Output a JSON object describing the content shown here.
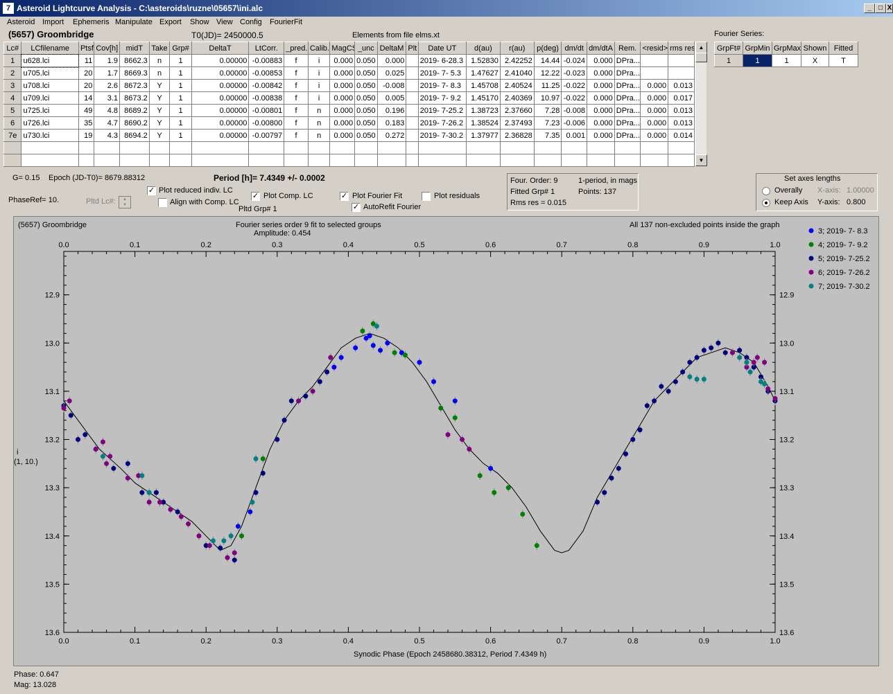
{
  "window": {
    "title": "Asteroid Lightcurve Analysis - C:\\asteroids\\ruzne\\05657\\ini.alc",
    "minimize": "_",
    "maximize": "□",
    "close": "X",
    "icon": "app-icon"
  },
  "menu": [
    "Asteroid",
    "Import",
    "Ephemeris",
    "Manipulate",
    "Export",
    "Show",
    "View",
    "Config",
    "FourierFit"
  ],
  "header": {
    "asteroid": "(5657) Groombridge",
    "t0": "T0(JD)= 2450000.5",
    "elements": "Elements from file elms.xt",
    "fourier_label": "Fourier Series:"
  },
  "lc_table": {
    "headers": [
      "Lc#",
      "LCfilename",
      "Ptsf",
      "Cov[h]",
      "midT",
      "Take",
      "Grp#",
      "DeltaT",
      "LtCorr.",
      "_pred.",
      "Calib.",
      "MagCS",
      "_unc",
      "DeltaM",
      "Plt",
      "Date UT",
      "d(au)",
      "r(au)",
      "p(deg)",
      "dm/dt",
      "dm/dtA",
      "Rem.",
      "<resid>",
      "rms res"
    ],
    "rows": [
      [
        "1",
        "u628.lci",
        "11",
        "1.9",
        "8662.3",
        "n",
        "1",
        "0.00000",
        "-0.00883",
        "f",
        "i",
        "0.000",
        "0.050",
        "0.000",
        "",
        "2019- 6-28.3",
        "1.52830",
        "2.42252",
        "14.44",
        "-0.024",
        "0.000",
        "DPra...",
        "",
        ""
      ],
      [
        "2",
        "u705.lci",
        "20",
        "1.7",
        "8669.3",
        "n",
        "1",
        "0.00000",
        "-0.00853",
        "f",
        "i",
        "0.000",
        "0.050",
        "0.025",
        "",
        "2019- 7- 5.3",
        "1.47627",
        "2.41040",
        "12.22",
        "-0.023",
        "0.000",
        "DPra...",
        "",
        ""
      ],
      [
        "3",
        "u708.lci",
        "20",
        "2.6",
        "8672.3",
        "Y",
        "1",
        "0.00000",
        "-0.00842",
        "f",
        "i",
        "0.000",
        "0.050",
        "-0.008",
        "",
        "2019- 7- 8.3",
        "1.45708",
        "2.40524",
        "11.25",
        "-0.022",
        "0.000",
        "DPra...",
        "0.000",
        "0.013"
      ],
      [
        "4",
        "u709.lci",
        "14",
        "3.1",
        "8673.2",
        "Y",
        "1",
        "0.00000",
        "-0.00838",
        "f",
        "i",
        "0.000",
        "0.050",
        "0.005",
        "",
        "2019- 7- 9.2",
        "1.45170",
        "2.40369",
        "10.97",
        "-0.022",
        "0.000",
        "DPra...",
        "0.000",
        "0.017"
      ],
      [
        "5",
        "u725.lci",
        "49",
        "4.8",
        "8689.2",
        "Y",
        "1",
        "0.00000",
        "-0.00801",
        "f",
        "n",
        "0.000",
        "0.050",
        "0.196",
        "",
        "2019- 7-25.2",
        "1.38723",
        "2.37660",
        "7.28",
        "-0.008",
        "0.000",
        "DPra...",
        "0.000",
        "0.013"
      ],
      [
        "6",
        "u726.lci",
        "35",
        "4.7",
        "8690.2",
        "Y",
        "1",
        "0.00000",
        "-0.00800",
        "f",
        "n",
        "0.000",
        "0.050",
        "0.183",
        "",
        "2019- 7-26.2",
        "1.38524",
        "2.37493",
        "7.23",
        "-0.006",
        "0.000",
        "DPra...",
        "0.000",
        "0.013"
      ],
      [
        "7e",
        "u730.lci",
        "19",
        "4.3",
        "8694.2",
        "Y",
        "1",
        "0.00000",
        "-0.00797",
        "f",
        "n",
        "0.000",
        "0.050",
        "0.272",
        "",
        "2019- 7-30.2",
        "1.37977",
        "2.36828",
        "7.35",
        "0.001",
        "0.000",
        "DPra...",
        "0.000",
        "0.014"
      ]
    ]
  },
  "fourier_table": {
    "headers": [
      "GrpFt#",
      "GrpMin",
      "GrpMax",
      "Shown",
      "Fitted"
    ],
    "row": [
      "1",
      "1",
      "1",
      "X",
      "T"
    ]
  },
  "controls": {
    "g": "G= 0.15",
    "epoch": "Epoch (JD-T0)= 8679.88312",
    "period": "Period [h]= 7.4349 +/- 0.0002",
    "phaseref": "PhaseRef= 10.",
    "pltd_lc": "Pltd Lc#:",
    "plot_reduced": "Plot reduced indiv. LC",
    "align_comp": "Align with Comp. LC",
    "plot_comp": "Plot Comp. LC",
    "pltd_grp": "Pltd Grp#  1",
    "plot_fourier": "Plot Fourier Fit",
    "autorefit": "AutoRefit Fourier",
    "plot_residuals": "Plot residuals",
    "check_mark": "✓"
  },
  "fit_info": {
    "order": "Four. Order:  9",
    "period_mode": "1-period, in mags",
    "fitted_grp": "Fitted Grp# 1",
    "points": "Points: 137",
    "rms": "Rms res      = 0.015"
  },
  "axes_box": {
    "title": "Set axes lengths",
    "overally": "Overally",
    "keep_axis": "Keep Axis",
    "x_axis": "X-axis:",
    "x_val": "1.00000",
    "y_axis": "Y-axis:",
    "y_val": "0.800"
  },
  "chart_data": {
    "type": "scatter",
    "title_left": "(5657) Groombridge",
    "title_center": "Fourier series order 9 fit to selected groups",
    "subtitle": "Amplitude: 0.454",
    "title_right": "All 137 non-excluded points inside the graph",
    "xlabel": "Synodic Phase (Epoch 2458680.38312, Period 7.4349 h)",
    "ylabel": "i",
    "ylabel2": "(1, 10.)",
    "xlim": [
      0.0,
      1.0
    ],
    "ylim": [
      12.81,
      13.6
    ],
    "y_inverted": true,
    "x_ticks": [
      "0.0",
      "0.1",
      "0.2",
      "0.3",
      "0.4",
      "0.5",
      "0.6",
      "0.7",
      "0.8",
      "0.9",
      "1.0"
    ],
    "y_ticks": [
      "12.9",
      "13.0",
      "13.1",
      "13.2",
      "13.3",
      "13.4",
      "13.5",
      "13.6"
    ],
    "fit_curve": [
      [
        0.0,
        13.12
      ],
      [
        0.02,
        13.16
      ],
      [
        0.05,
        13.22
      ],
      [
        0.08,
        13.26
      ],
      [
        0.1,
        13.29
      ],
      [
        0.13,
        13.32
      ],
      [
        0.15,
        13.34
      ],
      [
        0.18,
        13.37
      ],
      [
        0.2,
        13.4
      ],
      [
        0.22,
        13.43
      ],
      [
        0.235,
        13.42
      ],
      [
        0.25,
        13.38
      ],
      [
        0.27,
        13.3
      ],
      [
        0.29,
        13.22
      ],
      [
        0.31,
        13.16
      ],
      [
        0.33,
        13.12
      ],
      [
        0.35,
        13.09
      ],
      [
        0.37,
        13.05
      ],
      [
        0.39,
        13.01
      ],
      [
        0.41,
        12.99
      ],
      [
        0.43,
        12.98
      ],
      [
        0.45,
        12.99
      ],
      [
        0.47,
        13.01
      ],
      [
        0.49,
        13.04
      ],
      [
        0.51,
        13.08
      ],
      [
        0.53,
        13.13
      ],
      [
        0.55,
        13.18
      ],
      [
        0.57,
        13.22
      ],
      [
        0.59,
        13.25
      ],
      [
        0.61,
        13.27
      ],
      [
        0.63,
        13.3
      ],
      [
        0.65,
        13.34
      ],
      [
        0.67,
        13.39
      ],
      [
        0.69,
        13.43
      ],
      [
        0.7,
        13.435
      ],
      [
        0.71,
        13.43
      ],
      [
        0.73,
        13.39
      ],
      [
        0.75,
        13.32
      ],
      [
        0.77,
        13.27
      ],
      [
        0.79,
        13.22
      ],
      [
        0.81,
        13.17
      ],
      [
        0.83,
        13.12
      ],
      [
        0.85,
        13.09
      ],
      [
        0.87,
        13.06
      ],
      [
        0.89,
        13.03
      ],
      [
        0.91,
        13.02
      ],
      [
        0.93,
        13.01
      ],
      [
        0.95,
        13.02
      ],
      [
        0.97,
        13.04
      ],
      [
        0.99,
        13.09
      ],
      [
        1.0,
        13.12
      ]
    ],
    "series": [
      {
        "name": "3; 2019- 7- 8.3",
        "color": "#0000ff",
        "points": [
          [
            0.41,
            13.01
          ],
          [
            0.425,
            12.99
          ],
          [
            0.435,
            13.005
          ],
          [
            0.445,
            13.015
          ],
          [
            0.455,
            13.0
          ],
          [
            0.43,
            12.985
          ],
          [
            0.475,
            13.02
          ],
          [
            0.5,
            13.04
          ],
          [
            0.52,
            13.08
          ],
          [
            0.55,
            13.12
          ],
          [
            0.6,
            13.26
          ],
          [
            0.39,
            13.03
          ],
          [
            0.38,
            13.05
          ],
          [
            0.245,
            13.38
          ],
          [
            0.262,
            13.35
          ]
        ]
      },
      {
        "name": "4; 2019- 7- 9.2",
        "color": "#008000",
        "points": [
          [
            0.42,
            12.975
          ],
          [
            0.435,
            12.96
          ],
          [
            0.465,
            13.02
          ],
          [
            0.48,
            13.025
          ],
          [
            0.53,
            13.135
          ],
          [
            0.55,
            13.155
          ],
          [
            0.585,
            13.275
          ],
          [
            0.605,
            13.31
          ],
          [
            0.625,
            13.3
          ],
          [
            0.645,
            13.355
          ],
          [
            0.665,
            13.42
          ],
          [
            0.25,
            13.4
          ],
          [
            0.28,
            13.24
          ]
        ]
      },
      {
        "name": "5; 2019- 7-25.2",
        "color": "#000080",
        "points": [
          [
            0.0,
            13.13
          ],
          [
            0.01,
            13.15
          ],
          [
            0.02,
            13.2
          ],
          [
            0.03,
            13.19
          ],
          [
            0.045,
            13.22
          ],
          [
            0.07,
            13.26
          ],
          [
            0.09,
            13.25
          ],
          [
            0.11,
            13.31
          ],
          [
            0.13,
            13.31
          ],
          [
            0.14,
            13.33
          ],
          [
            0.16,
            13.35
          ],
          [
            0.2,
            13.42
          ],
          [
            0.22,
            13.425
          ],
          [
            0.24,
            13.45
          ],
          [
            0.27,
            13.31
          ],
          [
            0.28,
            13.27
          ],
          [
            0.3,
            13.2
          ],
          [
            0.31,
            13.16
          ],
          [
            0.32,
            13.12
          ],
          [
            0.34,
            13.11
          ],
          [
            0.36,
            13.08
          ],
          [
            0.37,
            13.06
          ],
          [
            0.75,
            13.33
          ],
          [
            0.76,
            13.31
          ],
          [
            0.77,
            13.28
          ],
          [
            0.78,
            13.26
          ],
          [
            0.79,
            13.23
          ],
          [
            0.8,
            13.2
          ],
          [
            0.81,
            13.18
          ],
          [
            0.82,
            13.13
          ],
          [
            0.83,
            13.12
          ],
          [
            0.84,
            13.09
          ],
          [
            0.85,
            13.1
          ],
          [
            0.86,
            13.08
          ],
          [
            0.87,
            13.06
          ],
          [
            0.88,
            13.04
          ],
          [
            0.89,
            13.03
          ],
          [
            0.9,
            13.015
          ],
          [
            0.91,
            13.01
          ],
          [
            0.92,
            13.0
          ],
          [
            0.93,
            13.02
          ],
          [
            0.95,
            13.015
          ],
          [
            0.96,
            13.03
          ],
          [
            0.97,
            13.05
          ],
          [
            0.98,
            13.07
          ],
          [
            0.99,
            13.1
          ],
          [
            1.0,
            13.12
          ]
        ]
      },
      {
        "name": "6; 2019- 7-26.2",
        "color": "#800080",
        "points": [
          [
            0.0,
            13.135
          ],
          [
            0.008,
            13.12
          ],
          [
            0.045,
            13.22
          ],
          [
            0.055,
            13.205
          ],
          [
            0.06,
            13.25
          ],
          [
            0.065,
            13.235
          ],
          [
            0.09,
            13.28
          ],
          [
            0.105,
            13.275
          ],
          [
            0.12,
            13.33
          ],
          [
            0.135,
            13.33
          ],
          [
            0.15,
            13.345
          ],
          [
            0.165,
            13.36
          ],
          [
            0.175,
            13.375
          ],
          [
            0.19,
            13.4
          ],
          [
            0.205,
            13.42
          ],
          [
            0.23,
            13.445
          ],
          [
            0.24,
            13.435
          ],
          [
            0.35,
            13.1
          ],
          [
            0.33,
            13.12
          ],
          [
            0.375,
            13.03
          ],
          [
            0.54,
            13.19
          ],
          [
            0.56,
            13.2
          ],
          [
            0.57,
            13.22
          ],
          [
            0.94,
            13.02
          ],
          [
            0.96,
            13.05
          ],
          [
            0.97,
            13.04
          ],
          [
            0.975,
            13.03
          ],
          [
            0.985,
            13.04
          ],
          [
            0.99,
            13.095
          ],
          [
            1.0,
            13.115
          ]
        ]
      },
      {
        "name": "7; 2019- 7-30.2",
        "color": "#008080",
        "points": [
          [
            0.055,
            13.235
          ],
          [
            0.11,
            13.275
          ],
          [
            0.12,
            13.31
          ],
          [
            0.21,
            13.41
          ],
          [
            0.225,
            13.41
          ],
          [
            0.235,
            13.4
          ],
          [
            0.265,
            13.33
          ],
          [
            0.27,
            13.24
          ],
          [
            0.44,
            12.965
          ],
          [
            0.88,
            13.07
          ],
          [
            0.89,
            13.075
          ],
          [
            0.9,
            13.075
          ],
          [
            0.95,
            13.03
          ],
          [
            0.96,
            13.04
          ],
          [
            0.965,
            13.06
          ],
          [
            0.98,
            13.08
          ],
          [
            0.985,
            13.085
          ]
        ]
      }
    ]
  },
  "status": {
    "phase": "Phase:  0.647",
    "mag": "Mag:    13.028"
  }
}
